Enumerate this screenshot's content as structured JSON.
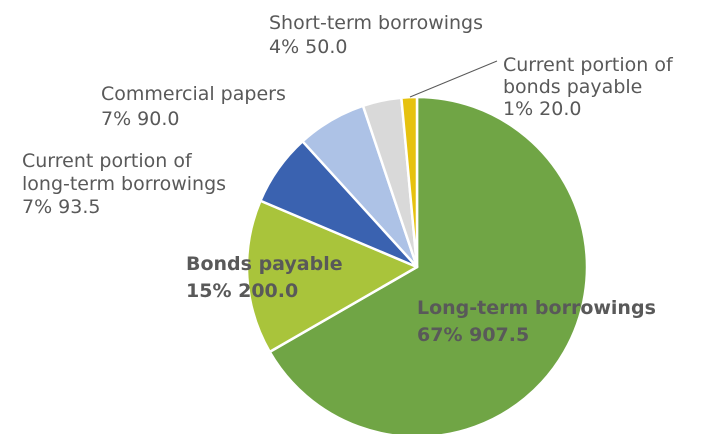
{
  "chart_data": {
    "type": "pie",
    "slices": [
      {
        "name": "Long-term borrowings",
        "percent_label": "67%",
        "value": 907.5,
        "value_label": "907.5",
        "color": "#70a545",
        "bold": true
      },
      {
        "name": "Bonds payable",
        "percent_label": "15%",
        "value": 200.0,
        "value_label": "200.0",
        "color": "#a9c43b",
        "bold": true
      },
      {
        "name": "Current portion of long-term borrowings",
        "percent_label": "7%",
        "value": 93.5,
        "value_label": "93.5",
        "color": "#3a62b0",
        "bold": false
      },
      {
        "name": "Commercial papers",
        "percent_label": "7%",
        "value": 90.0,
        "value_label": "90.0",
        "color": "#adc2e6",
        "bold": false
      },
      {
        "name": "Short-term borrowings",
        "percent_label": "4%",
        "value": 50.0,
        "value_label": "50.0",
        "color": "#d9d9d9",
        "bold": false
      },
      {
        "name": "Current portion of bonds payable",
        "percent_label": "1%",
        "value": 20.0,
        "value_label": "20.0",
        "color": "#e6c20f",
        "bold": false
      }
    ],
    "start": "12 o'clock",
    "direction": "clockwise",
    "legend": "none"
  },
  "labels": {
    "long_term": {
      "name": "Long-term borrowings",
      "stat": "67%  907.5"
    },
    "bonds": {
      "name": "Bonds payable",
      "stat": "15% 200.0"
    },
    "cur_lt": {
      "line1": "Current portion of",
      "line2": "long-term borrowings",
      "stat": "7%  93.5"
    },
    "cp": {
      "name": "Commercial papers",
      "stat": "7%  90.0"
    },
    "st": {
      "name": "Short-term borrowings",
      "stat": "4%  50.0"
    },
    "cur_bonds": {
      "line1": "Current portion of",
      "line2": "bonds payable",
      "stat": "1%  20.0"
    }
  }
}
